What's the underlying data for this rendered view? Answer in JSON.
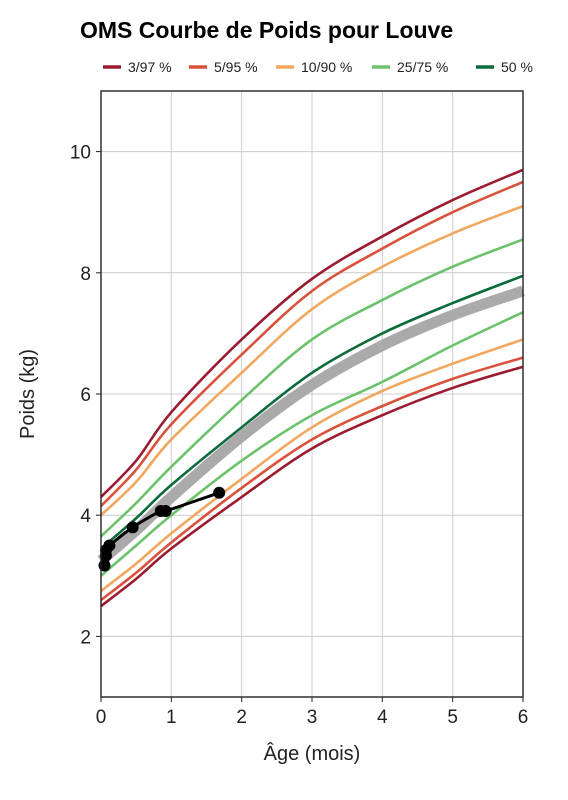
{
  "chart_data": {
    "type": "line",
    "title": "OMS Courbe de Poids pour Louve",
    "xlabel": "Âge (mois)",
    "ylabel": "Poids (kg)",
    "xlim": [
      0,
      6
    ],
    "ylim": [
      1,
      11
    ],
    "x_ticks": [
      "0",
      "1",
      "2",
      "3",
      "4",
      "5",
      "6"
    ],
    "y_ticks": [
      "2",
      "4",
      "6",
      "8",
      "10"
    ],
    "grid": true,
    "legend_position": "top",
    "legend": [
      {
        "label": "3/97 %",
        "color": "#9b1b30"
      },
      {
        "label": "5/95 %",
        "color": "#d9533c"
      },
      {
        "label": "10/90 %",
        "color": "#f2a75f"
      },
      {
        "label": "25/75 %",
        "color": "#6cc26b"
      },
      {
        "label": "50 %",
        "color": "#0b6b3a"
      }
    ],
    "x": [
      0,
      0.5,
      1,
      2,
      3,
      4,
      5,
      6
    ],
    "series": [
      {
        "band": "3/97 %",
        "color": "#9b1b30",
        "values": [
          4.3,
          4.9,
          5.7,
          6.9,
          7.9,
          8.6,
          9.2,
          9.7
        ]
      },
      {
        "band": "5/95 %",
        "color": "#d9533c",
        "values": [
          4.15,
          4.75,
          5.5,
          6.65,
          7.7,
          8.4,
          9.0,
          9.5
        ]
      },
      {
        "band": "10/90 %",
        "color": "#f2a75f",
        "values": [
          4.0,
          4.55,
          5.25,
          6.35,
          7.4,
          8.1,
          8.65,
          9.1
        ]
      },
      {
        "band": "25/75 %",
        "color": "#6cc26b",
        "values": [
          3.65,
          4.2,
          4.8,
          5.9,
          6.9,
          7.55,
          8.1,
          8.55
        ]
      },
      {
        "band": "50 %",
        "color": "#0b6b3a",
        "values": [
          3.45,
          3.95,
          4.5,
          5.45,
          6.35,
          7.0,
          7.5,
          7.95
        ]
      },
      {
        "band": "median",
        "color": "#aaaaaa",
        "values": [
          3.25,
          3.75,
          4.3,
          5.3,
          6.15,
          6.8,
          7.3,
          7.7
        ]
      },
      {
        "band": "25/75 %",
        "color": "#6cc26b",
        "values": [
          3.0,
          3.5,
          4.0,
          4.9,
          5.65,
          6.2,
          6.8,
          7.35
        ]
      },
      {
        "band": "10/90 %",
        "color": "#f2a75f",
        "values": [
          2.75,
          3.2,
          3.7,
          4.6,
          5.45,
          6.05,
          6.5,
          6.9
        ]
      },
      {
        "band": "5/95 %",
        "color": "#d9533c",
        "values": [
          2.6,
          3.05,
          3.55,
          4.45,
          5.25,
          5.8,
          6.25,
          6.6
        ]
      },
      {
        "band": "3/97 %",
        "color": "#9b1b30",
        "values": [
          2.5,
          2.95,
          3.45,
          4.3,
          5.1,
          5.65,
          6.1,
          6.45
        ]
      }
    ],
    "measurements": {
      "color": "#000000",
      "points": [
        {
          "x": 0.05,
          "y": 3.17
        },
        {
          "x": 0.07,
          "y": 3.33
        },
        {
          "x": 0.07,
          "y": 3.42
        },
        {
          "x": 0.12,
          "y": 3.5
        },
        {
          "x": 0.45,
          "y": 3.8
        },
        {
          "x": 0.85,
          "y": 4.07
        },
        {
          "x": 0.92,
          "y": 4.07
        },
        {
          "x": 1.68,
          "y": 4.37
        }
      ]
    }
  }
}
